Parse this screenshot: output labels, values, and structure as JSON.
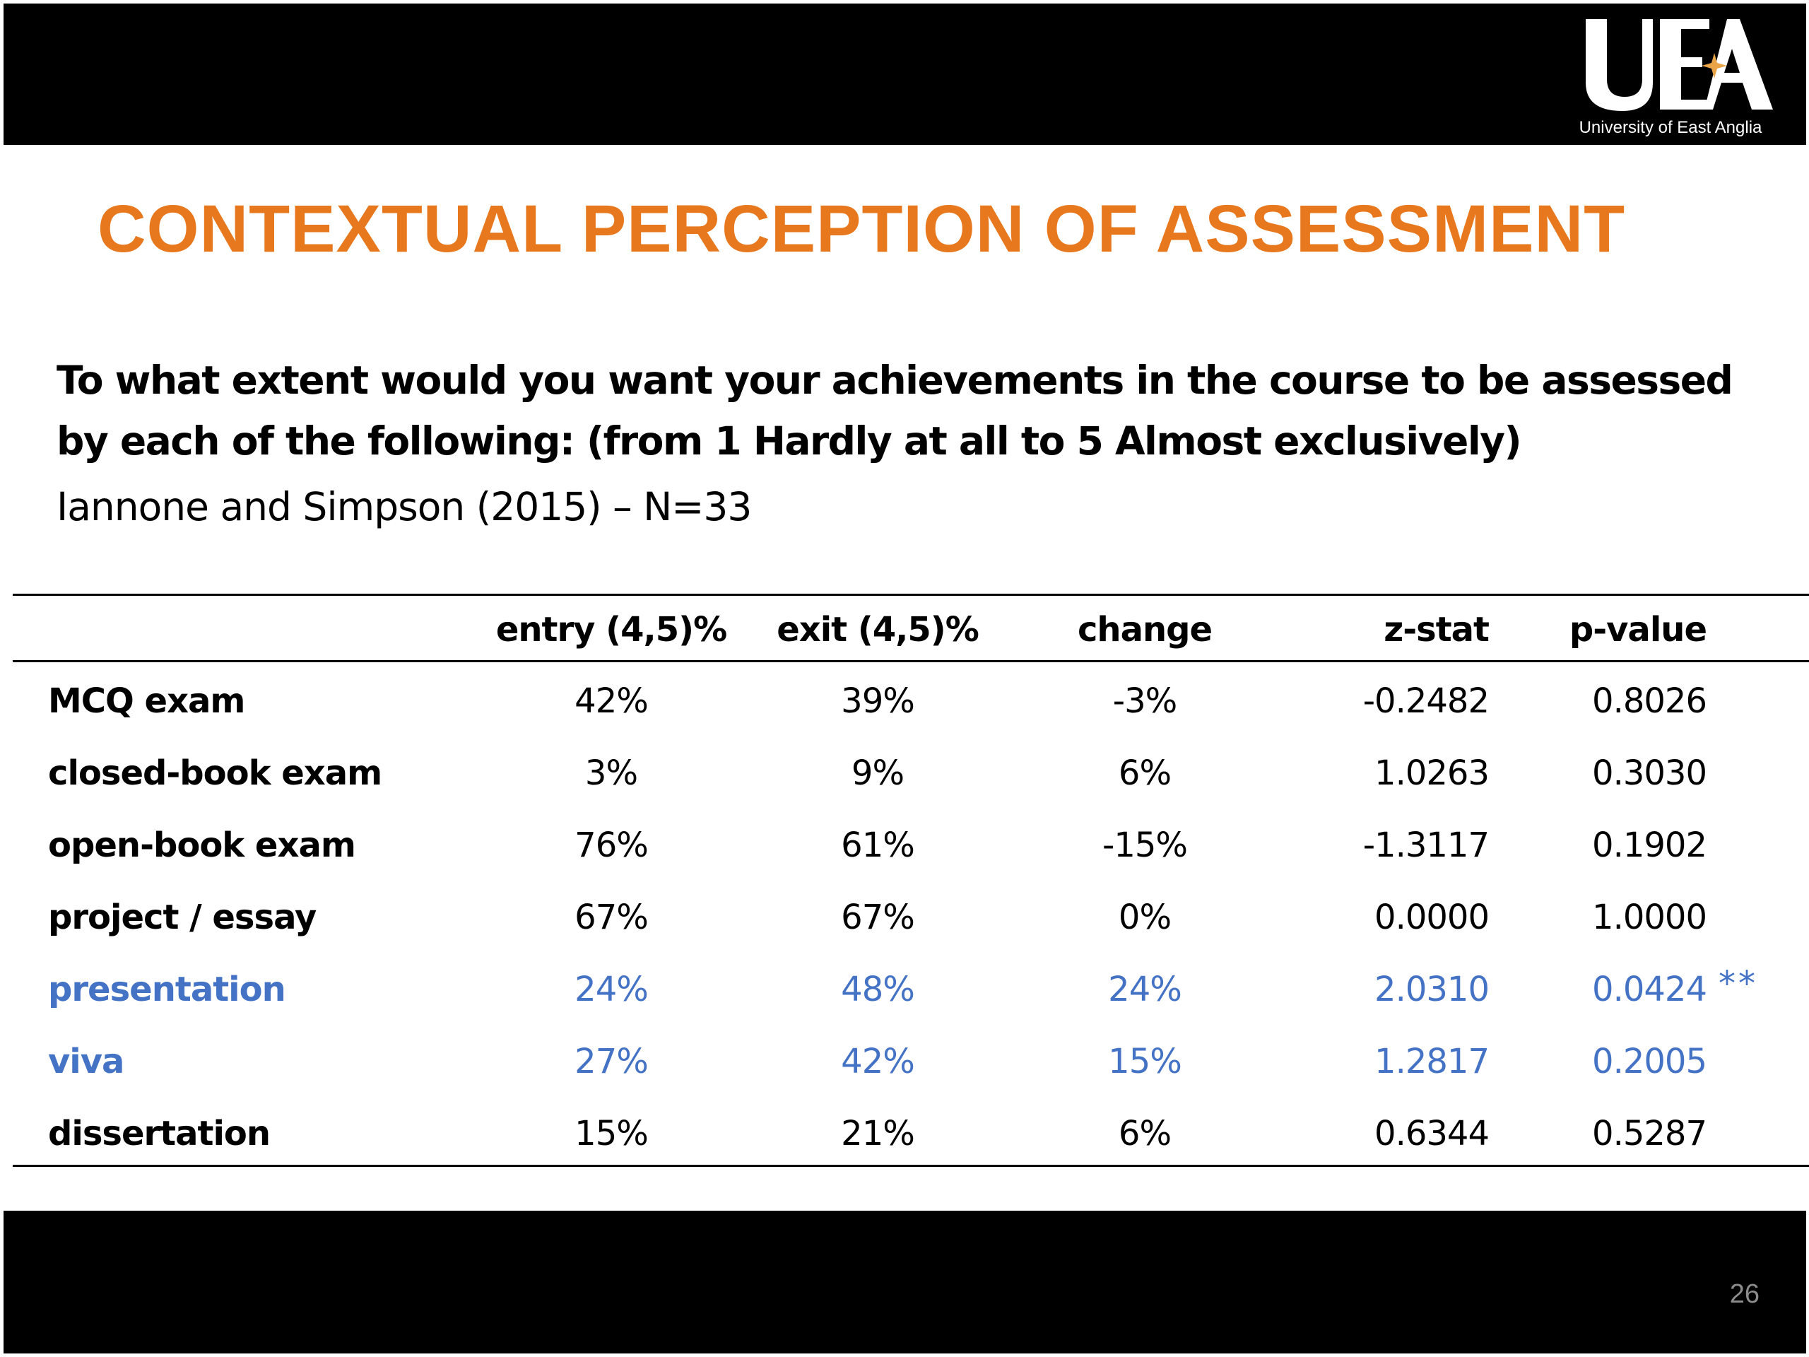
{
  "header": {
    "logo_mark": "UEA",
    "logo_caption": "University of East Anglia"
  },
  "slide": {
    "title": "CONTEXTUAL PERCEPTION OF ASSESSMENT",
    "question": "To what extent would you want your achievements in the course to be assessed by each of the following: (from 1 Hardly at all to 5 Almost exclusively)",
    "citation": "Iannone and Simpson (2015) – N=33",
    "page_number": "26"
  },
  "table": {
    "columns": [
      "",
      "entry (4,5)%",
      "exit (4,5)%",
      "change",
      "z-stat",
      "p-value"
    ],
    "rows": [
      {
        "label": "MCQ exam",
        "entry": "42%",
        "exit": "39%",
        "change": "-3%",
        "z": "-0.2482",
        "p": "0.8026",
        "flag": ""
      },
      {
        "label": "closed-book exam",
        "entry": "3%",
        "exit": "9%",
        "change": "6%",
        "z": "1.0263",
        "p": "0.3030",
        "flag": ""
      },
      {
        "label": "open-book exam",
        "entry": "76%",
        "exit": "61%",
        "change": "-15%",
        "z": "-1.3117",
        "p": "0.1902",
        "flag": ""
      },
      {
        "label": "project / essay",
        "entry": "67%",
        "exit": "67%",
        "change": "0%",
        "z": "0.0000",
        "p": "1.0000",
        "flag": ""
      },
      {
        "label": "presentation",
        "entry": "24%",
        "exit": "48%",
        "change": "24%",
        "z": "2.0310",
        "p": "0.0424",
        "flag": "**"
      },
      {
        "label": "viva",
        "entry": "27%",
        "exit": "42%",
        "change": "15%",
        "z": "1.2817",
        "p": "0.2005",
        "flag": ""
      },
      {
        "label": "dissertation",
        "entry": "15%",
        "exit": "21%",
        "change": "6%",
        "z": "0.6344",
        "p": "0.5287",
        "flag": ""
      }
    ],
    "highlighted_rows": [
      "presentation",
      "viva"
    ]
  },
  "colors": {
    "title": "#E8781E",
    "highlight": "#4472C4",
    "bars": "#000000"
  }
}
